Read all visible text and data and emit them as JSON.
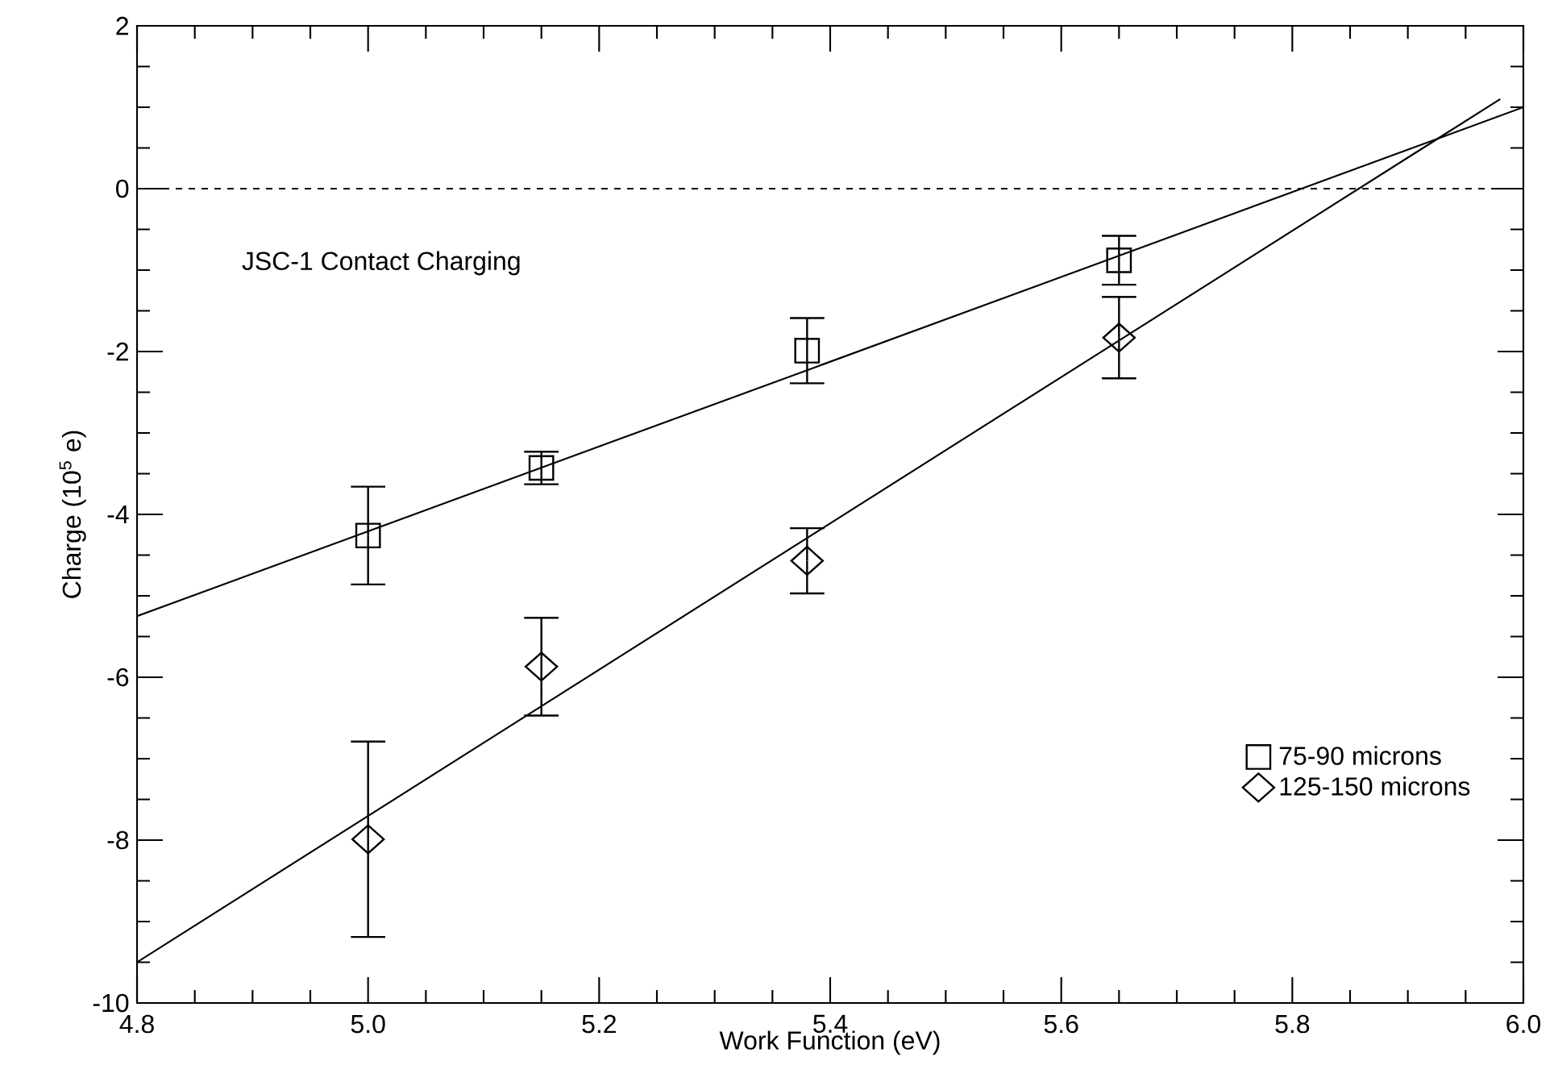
{
  "chart_data": {
    "type": "scatter",
    "xlabel": "Work Function (eV)",
    "ylabel": "Charge (10$^{5}$ e)",
    "xlim": [
      4.8,
      6.0
    ],
    "ylim": [
      -10,
      2
    ],
    "xticks": [
      4.8,
      {
        "value": 5.0,
        "label": "5.0"
      },
      5.2,
      5.4,
      5.6,
      5.8,
      {
        "value": 6.0,
        "label": "6.0"
      }
    ],
    "yticks": [
      -10,
      -8,
      -6,
      -4,
      -2,
      0,
      2
    ],
    "grid": false,
    "legend": "bottom right",
    "annotations": [
      "JSC-1 Contact Charging"
    ],
    "ref_lines": [
      {
        "axis": "y",
        "value": 0,
        "color": "#000000",
        "line_style": "dashed"
      }
    ],
    "series": [
      {
        "name": "75-90 microns",
        "color": "#000000",
        "marker": "square",
        "x": [
          5.0,
          5.15,
          5.38,
          5.65
        ],
        "values": [
          -4.26,
          -3.43,
          -1.99,
          -0.88
        ],
        "errors": [
          0.6,
          0.2,
          0.4,
          0.3
        ]
      },
      {
        "name": "125-150 microns",
        "color": "#000000",
        "marker": "diamond",
        "x": [
          5.0,
          5.15,
          5.38,
          5.65
        ],
        "values": [
          -7.99,
          -5.87,
          -4.57,
          -1.83
        ],
        "errors": [
          1.2,
          0.6,
          0.4,
          0.5
        ]
      },
      {
        "type": "line",
        "color": "#000000",
        "marker": "none",
        "line_style": "solid",
        "x": [
          4.8,
          6.0
        ],
        "values": [
          -5.25,
          1.0
        ]
      },
      {
        "type": "line",
        "color": "#000000",
        "marker": "none",
        "line_style": "solid",
        "x": [
          4.8,
          5.98
        ],
        "values": [
          -9.5,
          1.1
        ]
      }
    ]
  }
}
